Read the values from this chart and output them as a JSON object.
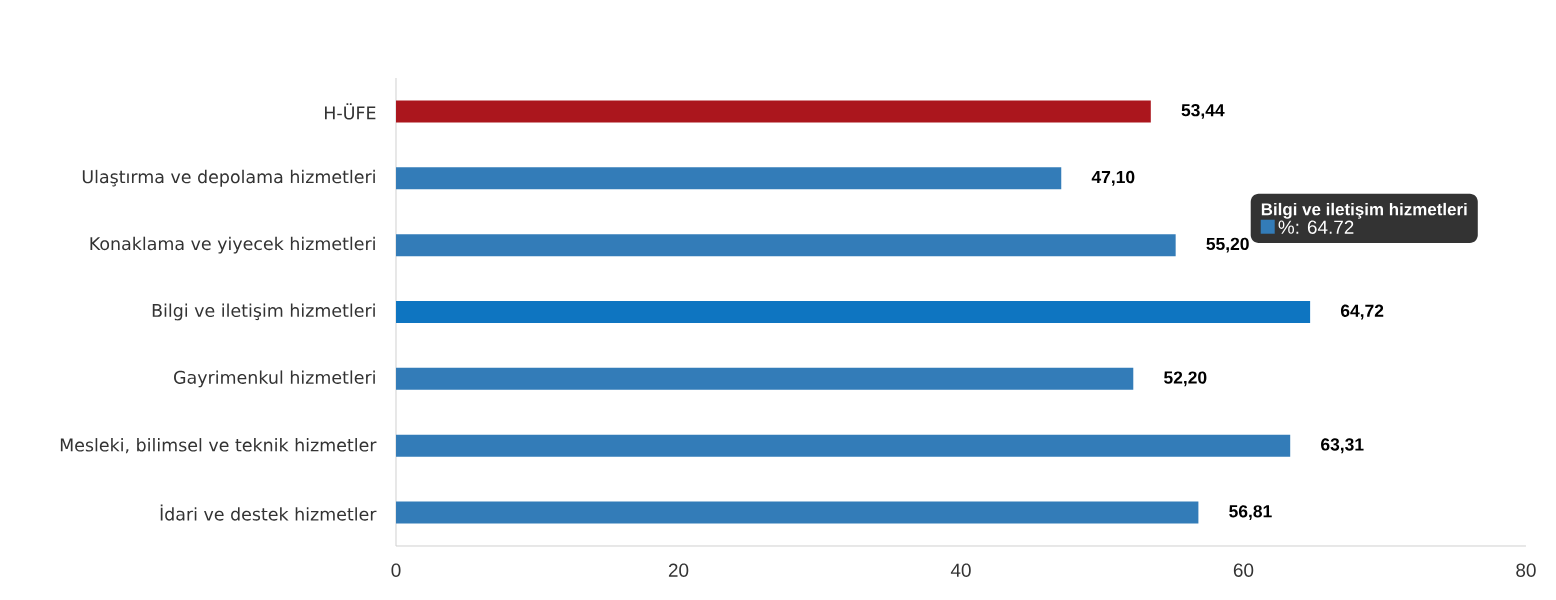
{
  "chart_data": {
    "type": "bar",
    "orientation": "horizontal",
    "categories": [
      "H-ÜFE",
      "Ulaştırma ve depolama hizmetleri",
      "Konaklama ve yiyecek hizmetleri",
      "Bilgi ve iletişim hizmetleri",
      "Gayrimenkul hizmetleri",
      "Mesleki, bilimsel ve teknik hizmetler",
      "İdari ve destek hizmetler"
    ],
    "values": [
      53.44,
      47.1,
      55.2,
      64.72,
      52.2,
      63.31,
      56.81
    ],
    "value_labels": [
      "53,44",
      "47,10",
      "55,20",
      "64,72",
      "52,20",
      "63,31",
      "56,81"
    ],
    "colors": [
      "#ab161d",
      "#337cb8",
      "#337cb8",
      "#0e75c1",
      "#337cb8",
      "#337cb8",
      "#337cb8"
    ],
    "xlim": [
      0,
      80
    ],
    "xticks": [
      0,
      20,
      40,
      60,
      80
    ],
    "grid": false,
    "annotations": [
      "Bilgi ve iletişim hizmetleri",
      "%: 64.72"
    ]
  }
}
